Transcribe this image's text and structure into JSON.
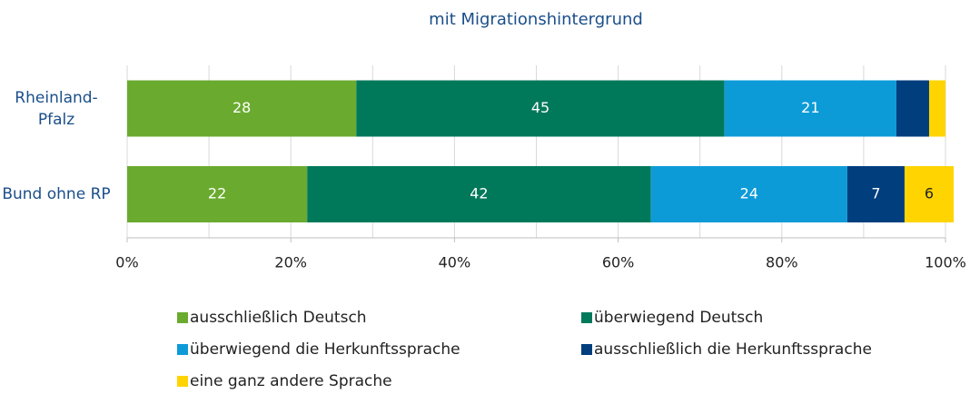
{
  "chart_data": {
    "type": "stacked_barh",
    "title": "mit Migrationshintergrund",
    "categories": [
      "Rheinland-Pfalz",
      "Bund ohne RP"
    ],
    "series": [
      {
        "name": "ausschließlich Deutsch",
        "color": "#6aab2f",
        "values": [
          28,
          22
        ]
      },
      {
        "name": "überwiegend Deutsch",
        "color": "#00795a",
        "values": [
          45,
          42
        ]
      },
      {
        "name": "überwiegend die Herkunftssprache",
        "color": "#0d9bd8",
        "values": [
          21,
          24
        ]
      },
      {
        "name": "ausschließlich die Herkunftssprache",
        "color": "#003e7e",
        "values": [
          4,
          7
        ]
      },
      {
        "name": "eine ganz andere Sprache",
        "color": "#ffd400",
        "values": [
          2,
          6
        ]
      }
    ],
    "xlim": [
      0,
      100
    ],
    "xticks": [
      {
        "value": 0,
        "label": "0%"
      },
      {
        "value": 20,
        "label": "20%"
      },
      {
        "value": 40,
        "label": "40%"
      },
      {
        "value": 60,
        "label": "60%"
      },
      {
        "value": 80,
        "label": "80%"
      },
      {
        "value": 100,
        "label": "100%"
      }
    ],
    "xgrid": [
      0,
      10,
      20,
      30,
      40,
      50,
      60,
      70,
      80,
      90,
      100
    ],
    "grid": true,
    "legend": "bottom"
  }
}
